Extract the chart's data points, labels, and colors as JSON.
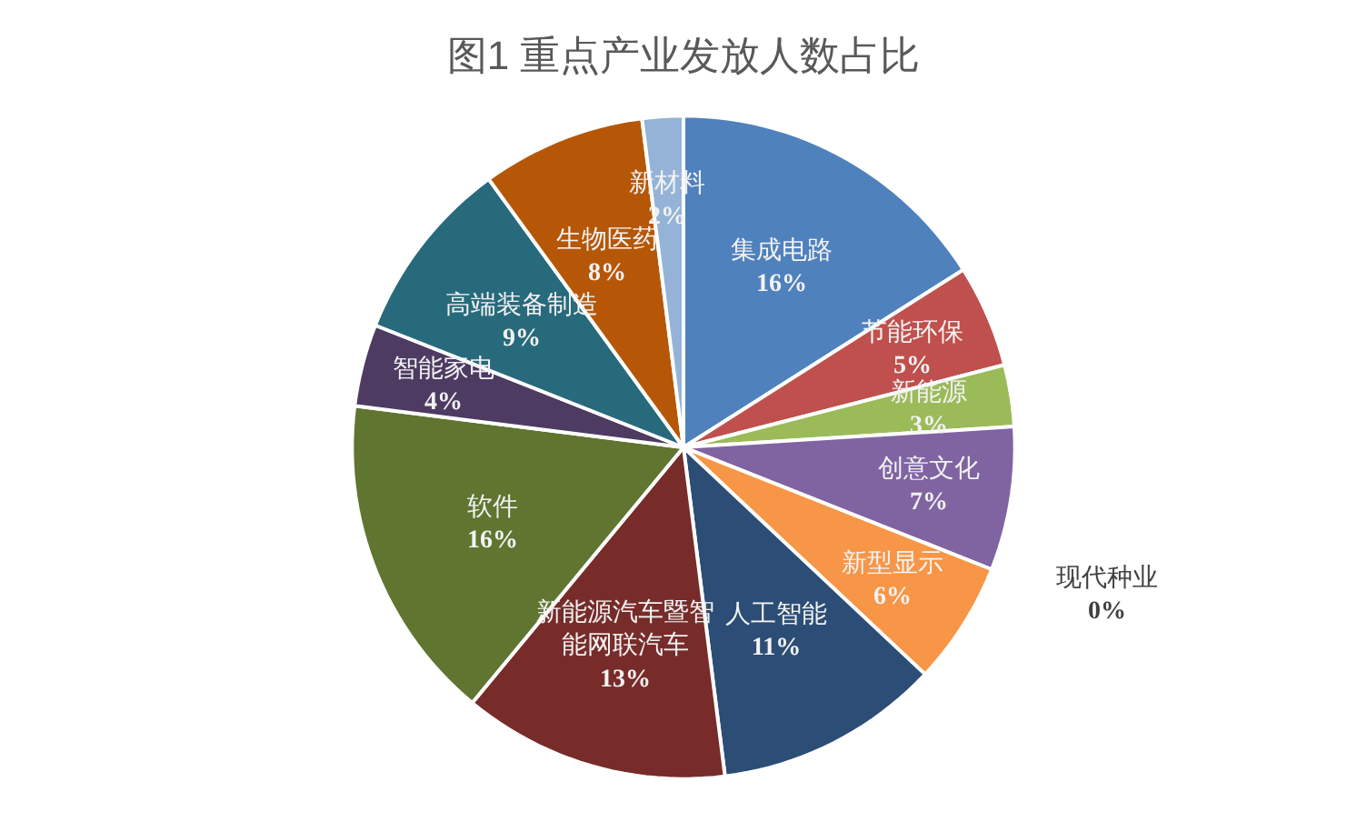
{
  "chart_data": {
    "type": "pie",
    "title": "图1 重点产业发放人数占比",
    "categories": [
      "集成电路",
      "节能环保",
      "新能源",
      "创意文化",
      "现代种业",
      "新型显示",
      "人工智能",
      "新能源汽车暨智能网联汽车",
      "软件",
      "智能家电",
      "高端装备制造",
      "生物医药",
      "新材料"
    ],
    "values": [
      16,
      5,
      3,
      7,
      0,
      6,
      11,
      13,
      16,
      4,
      9,
      8,
      2
    ],
    "value_labels": [
      "16%",
      "5%",
      "3%",
      "7%",
      "0%",
      "6%",
      "11%",
      "13%",
      "16%",
      "4%",
      "9%",
      "8%",
      "2%"
    ],
    "colors": [
      "#4f81bd",
      "#c0504d",
      "#9bbb59",
      "#8064a2",
      "#4bacc6",
      "#f79646",
      "#2c4d75",
      "#772c2a",
      "#5f7530",
      "#4d3b62",
      "#276a7c",
      "#b65708",
      "#95b3d7"
    ],
    "legend": false
  }
}
